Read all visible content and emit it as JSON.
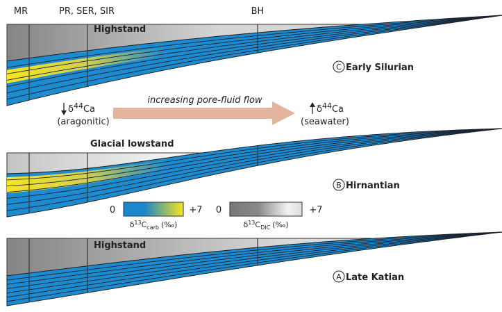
{
  "locations": [
    "MR",
    "PR, SER, SIR",
    "BH"
  ],
  "panels": [
    {
      "letter": "C",
      "label": "Early Silurian",
      "stage": "Highstand"
    },
    {
      "letter": "B",
      "label": "Hirnantian",
      "stage": "Glacial lowstand"
    },
    {
      "letter": "A",
      "label": "Late Katian",
      "stage": "Highstand"
    }
  ],
  "flow": {
    "text": "increasing pore-fluid flow",
    "left": {
      "symbol": "δ",
      "sup": "44",
      "element": "Ca",
      "note": "(aragonitic)"
    },
    "right": {
      "symbol": "δ",
      "sup": "44",
      "element": "Ca",
      "note": "(seawater)"
    }
  },
  "legend": [
    {
      "min": "0",
      "max": "+7",
      "symbol": "δ",
      "sup": "13",
      "main": "C",
      "sub": "carb",
      "unit": "(‰)"
    },
    {
      "min": "0",
      "max": "+7",
      "symbol": "δ",
      "sup": "13",
      "main": "C",
      "sub": "DIC",
      "unit": "(‰)"
    }
  ]
}
